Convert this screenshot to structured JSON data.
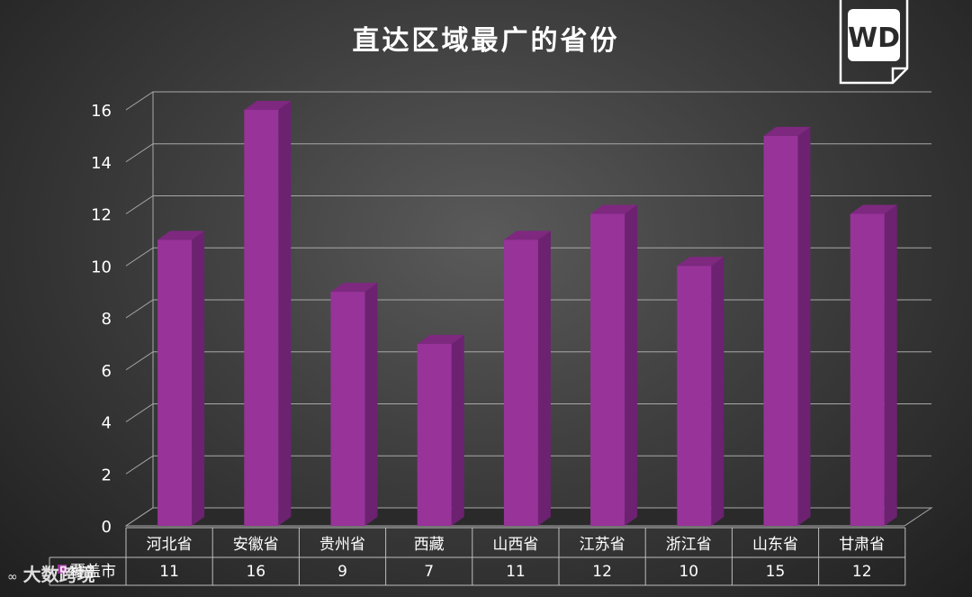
{
  "title": "直达区域最广的省份",
  "watermark": "大数跨境",
  "watermark_mark": "∞",
  "colors": {
    "bar_front": "#98339a",
    "bar_side": "#6c2270",
    "bar_top": "#7e2880",
    "grid": "#a8a8a8",
    "text": "#ffffff"
  },
  "chart_data": {
    "type": "bar",
    "categories": [
      "河北省",
      "安徽省",
      "贵州省",
      "西藏",
      "山西省",
      "江苏省",
      "浙江省",
      "山东省",
      "甘肃省"
    ],
    "series": [
      {
        "name": "覆盖市",
        "values": [
          11,
          16,
          9,
          7,
          11,
          12,
          10,
          15,
          12
        ]
      }
    ],
    "ylim": [
      0,
      16
    ],
    "yticks": [
      0,
      2,
      4,
      6,
      8,
      10,
      12,
      14,
      16
    ],
    "grid": true,
    "data_table": true,
    "perspective": "3d"
  }
}
